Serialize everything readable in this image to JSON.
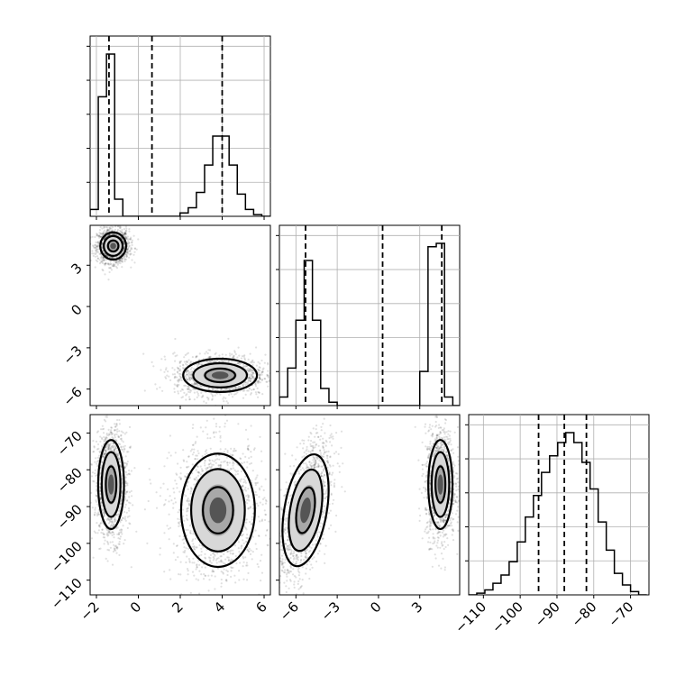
{
  "chart_data": {
    "type": "corner",
    "colors": {
      "line": "#000000",
      "grid": "#b0b0b0",
      "scatter": "#000000"
    },
    "grid": true,
    "parameters": [
      {
        "ticks": [
          -2,
          0,
          2,
          4,
          6
        ],
        "tick_labels": [
          "−2",
          "0",
          "2",
          "4",
          "6"
        ],
        "range": [
          -2.3,
          6.3
        ],
        "quantiles": [
          -1.4,
          0.65,
          4.0
        ],
        "histogram": {
          "bins": [
            -2.3,
            -1.91,
            -1.52,
            -1.13,
            -0.74,
            -0.35,
            0.04,
            0.43,
            0.82,
            1.21,
            1.6,
            1.99,
            2.38,
            2.77,
            3.16,
            3.55,
            3.94,
            4.33,
            4.72,
            5.11,
            5.5,
            5.89,
            6.28
          ],
          "counts": [
            0.04,
            0.7,
            0.95,
            0.1,
            0,
            0,
            0,
            0,
            0,
            0,
            0,
            0.02,
            0.05,
            0.14,
            0.3,
            0.47,
            0.47,
            0.3,
            0.13,
            0.04,
            0.01,
            0
          ]
        }
      },
      {
        "ticks": [
          -6,
          -3,
          0,
          3
        ],
        "tick_labels": [
          "−6",
          "−3",
          "0",
          "3"
        ],
        "range": [
          -7.2,
          5.9
        ],
        "quantiles": [
          -5.3,
          0.3,
          4.6
        ],
        "histogram": {
          "bins": [
            -7.2,
            -6.6,
            -6.0,
            -5.4,
            -4.8,
            -4.2,
            -3.6,
            -3.0,
            -2.4,
            -1.8,
            -1.2,
            -0.6,
            0.0,
            0.6,
            1.2,
            1.8,
            2.4,
            3.0,
            3.6,
            4.2,
            4.8,
            5.4,
            6.0
          ],
          "counts": [
            0.05,
            0.22,
            0.5,
            0.85,
            0.5,
            0.1,
            0.02,
            0,
            0,
            0,
            0,
            0,
            0,
            0,
            0,
            0,
            0,
            0.2,
            0.93,
            0.95,
            0.05,
            0
          ]
        }
      },
      {
        "ticks": [
          -110,
          -100,
          -90,
          -80,
          -70
        ],
        "tick_labels": [
          "−110",
          "−100",
          "−90",
          "−80",
          "−70"
        ],
        "range": [
          -114,
          -65
        ],
        "quantiles": [
          -95,
          -88,
          -82
        ],
        "histogram": {
          "bins": [
            -114,
            -111.8,
            -109.6,
            -107.4,
            -105.2,
            -103,
            -100.8,
            -98.6,
            -96.4,
            -94.2,
            -92,
            -89.8,
            -87.6,
            -85.4,
            -83.2,
            -81,
            -78.8,
            -76.6,
            -74.4,
            -72.2,
            -70,
            -67.8,
            -65.6
          ],
          "counts": [
            0,
            0.01,
            0.03,
            0.07,
            0.12,
            0.2,
            0.32,
            0.47,
            0.6,
            0.74,
            0.84,
            0.92,
            0.98,
            0.92,
            0.8,
            0.64,
            0.44,
            0.27,
            0.13,
            0.06,
            0.02,
            0
          ]
        }
      }
    ],
    "pairs": [
      {
        "x_param": 0,
        "y_param": 1,
        "modes": [
          {
            "x": -1.2,
            "y": 4.4,
            "sx": 0.28,
            "sy": 0.45,
            "weight": 0.5
          },
          {
            "x": 3.9,
            "y": -5.0,
            "sx": 0.8,
            "sy": 0.55,
            "weight": 0.5
          }
        ]
      },
      {
        "x_param": 0,
        "y_param": 2,
        "modes": [
          {
            "x": -1.3,
            "y": -84,
            "sx": 0.28,
            "sy": 5.5,
            "weight": 0.5
          },
          {
            "x": 3.8,
            "y": -91,
            "sx": 0.8,
            "sy": 7,
            "weight": 0.5
          }
        ]
      },
      {
        "x_param": 1,
        "y_param": 2,
        "modes": [
          {
            "x": -5.3,
            "y": -91,
            "sx": 0.7,
            "sy": 7,
            "weight": 0.5,
            "rho": 0.55
          },
          {
            "x": 4.5,
            "y": -84,
            "sx": 0.4,
            "sy": 5.5,
            "weight": 0.5
          }
        ]
      }
    ]
  }
}
